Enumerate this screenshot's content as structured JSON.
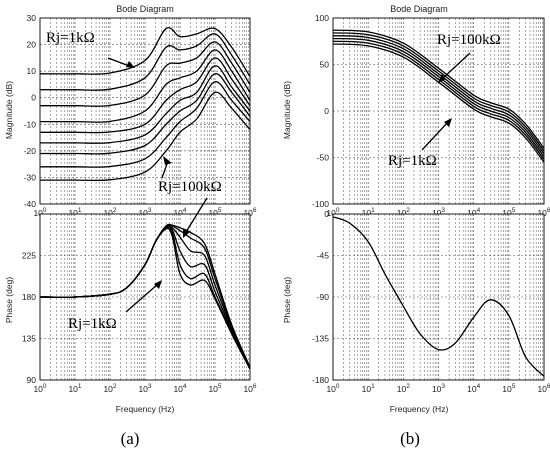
{
  "panels": [
    {
      "caption": "(a)",
      "title": "Bode Diagram",
      "xlabel": "Frequency (Hz)",
      "mag_ylabel": "Magnitude (dB)",
      "phase_ylabel": "Phase (deg)",
      "annotations": [
        "Rj=1kΩ",
        "Rj=100kΩ",
        "Rj=1kΩ"
      ]
    },
    {
      "caption": "(b)",
      "title": "Bode Diagram",
      "xlabel": "Frequency (Hz)",
      "mag_ylabel": "Magnitude (dB)",
      "phase_ylabel": "Phase (deg)",
      "annotations": [
        "Rj=100kΩ",
        "Rj=1kΩ"
      ]
    }
  ],
  "chart_data": [
    {
      "type": "line",
      "title": "Bode Diagram",
      "subplot": "magnitude",
      "xscale": "log",
      "xlim": [
        1,
        1000000
      ],
      "ylim": [
        -40,
        30
      ],
      "ylabel": "Magnitude (dB)",
      "grid": true,
      "x_ticks": [
        "10^0",
        "10^1",
        "10^2",
        "10^3",
        "10^4",
        "10^5",
        "10^6"
      ],
      "y_ticks": [
        "-40",
        "-30",
        "-20",
        "-10",
        "0",
        "10",
        "20",
        "30"
      ],
      "x": [
        1,
        10,
        100,
        1000,
        4000,
        10000,
        30000,
        100000,
        300000,
        1000000
      ],
      "series": [
        {
          "values": [
            9,
            9,
            9.3,
            14,
            26,
            23,
            24,
            26,
            19,
            8
          ]
        },
        {
          "values": [
            3,
            3,
            3.2,
            7.5,
            19,
            18,
            19.5,
            24,
            16,
            5
          ]
        },
        {
          "values": [
            -3,
            -3,
            -2.9,
            1,
            12,
            13,
            15,
            21,
            13,
            2
          ]
        },
        {
          "values": [
            -9,
            -9,
            -8.9,
            -5,
            5,
            7.5,
            10,
            18,
            10,
            -1
          ]
        },
        {
          "values": [
            -13,
            -13,
            -12.9,
            -10,
            -1,
            3,
            6,
            15,
            7,
            -3
          ]
        },
        {
          "values": [
            -17,
            -17,
            -16.9,
            -14,
            -6,
            -1,
            2,
            12,
            4,
            -5
          ]
        },
        {
          "values": [
            -21,
            -21,
            -20.9,
            -18,
            -10,
            -5,
            -1,
            9,
            2,
            -7
          ]
        },
        {
          "values": [
            -26,
            -26,
            -25.9,
            -23,
            -15,
            -9,
            -4,
            6,
            -1,
            -9
          ]
        },
        {
          "values": [
            -31,
            -31,
            -30.9,
            -28,
            -20,
            -13,
            -8,
            2,
            -4,
            -12
          ]
        }
      ]
    },
    {
      "type": "line",
      "subplot": "phase",
      "xscale": "log",
      "xlim": [
        1,
        1000000
      ],
      "ylim": [
        90,
        270
      ],
      "xlabel": "Frequency (Hz)",
      "ylabel": "Phase (deg)",
      "grid": true,
      "x_ticks": [
        "10^0",
        "10^1",
        "10^2",
        "10^3",
        "10^4",
        "10^5",
        "10^6"
      ],
      "y_ticks": [
        "90",
        "135",
        "180",
        "225"
      ],
      "x": [
        1,
        10,
        100,
        300,
        1000,
        2000,
        4000,
        6000,
        10000,
        20000,
        50000,
        100000,
        300000,
        1000000
      ],
      "series": [
        {
          "values": [
            180,
            180,
            183,
            190,
            215,
            240,
            254,
            246,
            205,
            193,
            198,
            178,
            140,
            102
          ]
        },
        {
          "values": [
            180,
            180,
            183,
            190,
            215,
            240,
            254,
            250,
            215,
            200,
            205,
            180,
            142,
            102
          ]
        },
        {
          "values": [
            180,
            180,
            183,
            190,
            215,
            240,
            255,
            253,
            230,
            213,
            215,
            186,
            144,
            103
          ]
        },
        {
          "values": [
            180,
            180,
            183,
            190,
            215,
            240,
            256,
            255,
            245,
            230,
            225,
            193,
            146,
            103
          ]
        },
        {
          "values": [
            180,
            180,
            183,
            190,
            215,
            240,
            257,
            257,
            252,
            244,
            233,
            200,
            148,
            104
          ]
        },
        {
          "values": [
            180,
            180,
            183,
            190,
            215,
            240,
            257,
            258,
            255,
            250,
            238,
            205,
            150,
            104
          ]
        }
      ]
    },
    {
      "type": "line",
      "title": "Bode Diagram",
      "subplot": "magnitude",
      "xscale": "log",
      "xlim": [
        1,
        1000000
      ],
      "ylim": [
        -100,
        100
      ],
      "ylabel": "Magnitude (dB)",
      "grid": true,
      "x_ticks": [
        "10^0",
        "10^1",
        "10^2",
        "10^3",
        "10^4",
        "10^5",
        "10^6"
      ],
      "y_ticks": [
        "-100",
        "-50",
        "0",
        "50",
        "100"
      ],
      "x": [
        1,
        10,
        100,
        1000,
        10000,
        30000,
        100000,
        300000,
        1000000
      ],
      "series": [
        {
          "values": [
            87,
            85,
            73,
            46,
            17,
            9,
            2,
            -14,
            -40
          ]
        },
        {
          "values": [
            84,
            82,
            70,
            43,
            14,
            6,
            -1,
            -17,
            -43
          ]
        },
        {
          "values": [
            81,
            79,
            67,
            40,
            11,
            3,
            -4,
            -20,
            -46
          ]
        },
        {
          "values": [
            78,
            76,
            64,
            37,
            8,
            0,
            -7,
            -23,
            -49
          ]
        },
        {
          "values": [
            75,
            73,
            61,
            34,
            5,
            -3,
            -10,
            -26,
            -52
          ]
        },
        {
          "values": [
            72,
            70,
            58,
            31,
            2,
            -6,
            -13,
            -29,
            -55
          ]
        }
      ]
    },
    {
      "type": "line",
      "subplot": "phase",
      "xscale": "log",
      "xlim": [
        1,
        1000000
      ],
      "ylim": [
        -180,
        0
      ],
      "xlabel": "Frequency (Hz)",
      "ylabel": "Phase (deg)",
      "grid": true,
      "x_ticks": [
        "10^0",
        "10^1",
        "10^2",
        "10^3",
        "10^4",
        "10^5",
        "10^6"
      ],
      "y_ticks": [
        "-180",
        "-135",
        "-90",
        "-45",
        "0"
      ],
      "x": [
        1,
        3,
        10,
        30,
        100,
        300,
        1000,
        3000,
        10000,
        30000,
        100000,
        300000,
        1000000
      ],
      "series": [
        {
          "values": [
            -3,
            -10,
            -30,
            -65,
            -100,
            -130,
            -147,
            -140,
            -112,
            -93,
            -110,
            -155,
            -176
          ]
        }
      ]
    }
  ]
}
